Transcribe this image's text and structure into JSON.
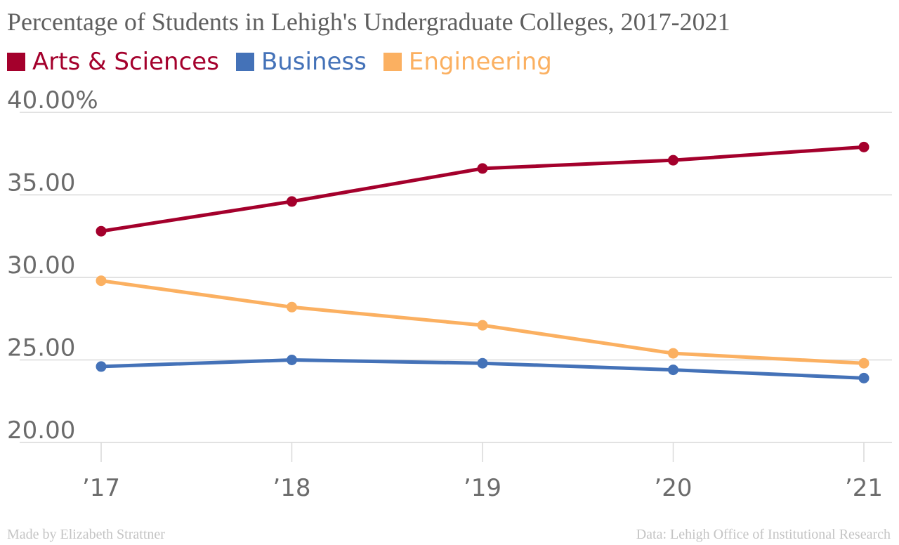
{
  "chart_data": {
    "type": "line",
    "title": "Percentage of Students in Lehigh's Undergraduate Colleges, 2017-2021",
    "x": [
      "’17",
      "’18",
      "’19",
      "’20",
      "’21"
    ],
    "yticks": [
      "40.00%",
      "35.00",
      "30.00",
      "25.00",
      "20.00"
    ],
    "ylim": [
      20,
      40
    ],
    "grid": true,
    "legend_position": "top-left",
    "series": [
      {
        "name": "Arts & Sciences",
        "color": "#a4002c",
        "values": [
          32.8,
          34.6,
          36.6,
          37.1,
          37.9
        ]
      },
      {
        "name": "Business",
        "color": "#4472b8",
        "values": [
          24.6,
          25.0,
          24.8,
          24.4,
          23.9
        ]
      },
      {
        "name": "Engineering",
        "color": "#fbb061",
        "values": [
          29.8,
          28.2,
          27.1,
          25.4,
          24.8
        ]
      }
    ]
  },
  "footer": {
    "credit": "Made by Elizabeth Strattner",
    "source": "Data: Lehigh Office of Institutional Research"
  }
}
